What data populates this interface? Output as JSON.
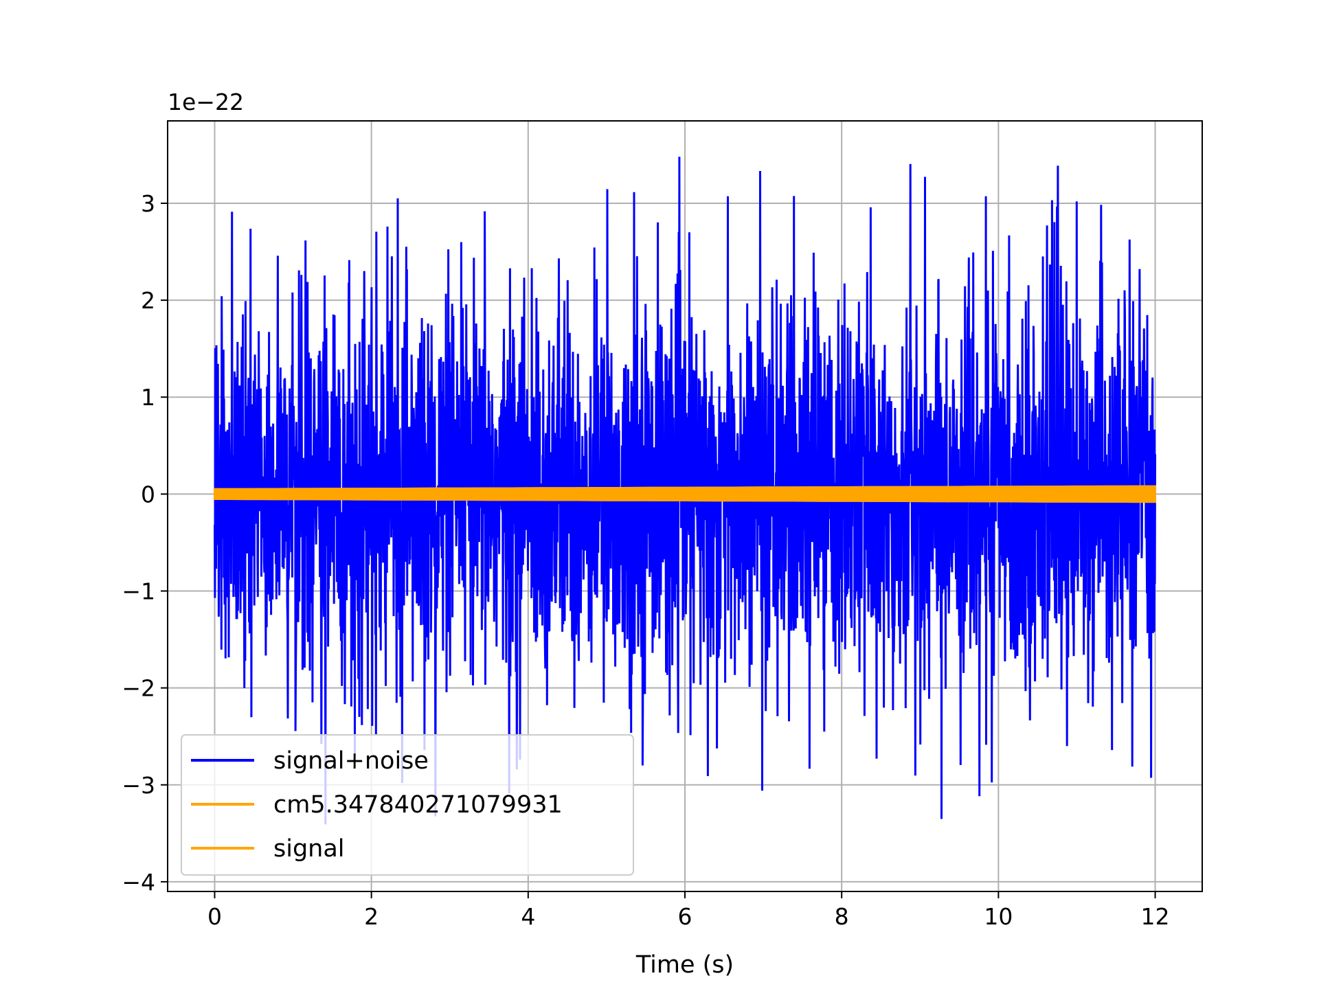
{
  "chart_data": {
    "type": "line",
    "title": "",
    "xlabel": "Time (s)",
    "ylabel": "",
    "y_offset_text": "1e−22",
    "xlim": [
      -0.6,
      12.6
    ],
    "ylim": [
      -4.1,
      3.85
    ],
    "xticks": [
      0,
      2,
      4,
      6,
      8,
      10,
      12
    ],
    "xtick_labels": [
      "0",
      "2",
      "4",
      "6",
      "8",
      "10",
      "12"
    ],
    "yticks": [
      -4,
      -3,
      -2,
      -1,
      0,
      1,
      2,
      3
    ],
    "ytick_labels": [
      "−4",
      "−3",
      "−2",
      "−1",
      "0",
      "1",
      "2",
      "3"
    ],
    "grid": true,
    "legend_position": "lower-left",
    "series": [
      {
        "name": "signal+noise",
        "color": "#0000ff",
        "description": "dense Gaussian-like noise, roughly symmetric about 0",
        "x_range": [
          0,
          12
        ],
        "typical_amplitude": 1.5,
        "max": 3.48,
        "min": -3.75
      },
      {
        "name": "cm5.347840271079931",
        "color": "#ffa500",
        "x_range": [
          0,
          12
        ],
        "envelope_start": 0.05,
        "envelope_end": 0.08
      },
      {
        "name": "signal",
        "color": "#ffa500",
        "x_range": [
          0,
          12
        ],
        "envelope_start": 0.05,
        "envelope_end": 0.08
      }
    ]
  }
}
